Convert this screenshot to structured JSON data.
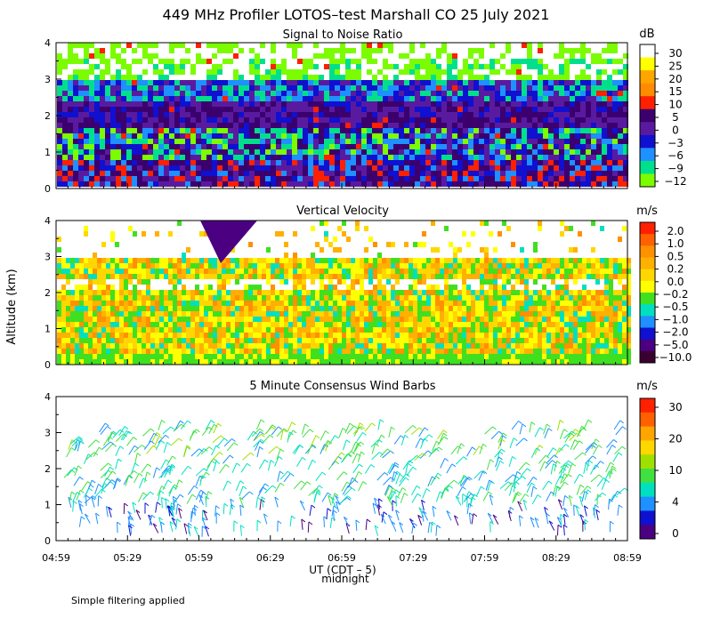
{
  "figure": {
    "title": "449 MHz Profiler LOTOS–test Marshall CO 25 July 2021",
    "ylabel": "Altitude (km)",
    "xlabel": "UT  (CDT – 5)",
    "xlabel_sub": "midnight",
    "footnote": "Simple filtering applied"
  },
  "chart_data": [
    {
      "type": "heatmap",
      "title": "Signal to Noise Ratio",
      "unit": "dB",
      "x_ticks": [],
      "y_ticks": [
        "0",
        "1",
        "2",
        "3",
        "4"
      ],
      "ylim": [
        0,
        4
      ],
      "colorbar_labels": [
        "30",
        "25",
        "20",
        "15",
        "10",
        "5",
        "0",
        "−3",
        "−6",
        "−9",
        "−12"
      ],
      "colors": [
        "#ffffff",
        "#ffff00",
        "#ffa500",
        "#ff8c00",
        "#ff2000",
        "#3b006e",
        "#5a1aa0",
        "#1010d0",
        "#1e90ff",
        "#00e08c",
        "#7cfc00"
      ]
    },
    {
      "type": "heatmap",
      "title": "Vertical Velocity",
      "unit": "m/s",
      "x_ticks": [],
      "y_ticks": [
        "0",
        "1",
        "2",
        "3",
        "4"
      ],
      "ylim": [
        0,
        4
      ],
      "colorbar_labels": [
        "2.0",
        "1.0",
        "0.5",
        "0.2",
        "0.0",
        "−0.2",
        "−0.5",
        "−1.0",
        "−2.0",
        "−5.0",
        "−10.0"
      ],
      "colors": [
        "#ff2000",
        "#ff6000",
        "#ff9000",
        "#ffb000",
        "#ffd700",
        "#ffff00",
        "#40e020",
        "#00e0c0",
        "#1e90ff",
        "#1010d0",
        "#4b0082",
        "#3a0030"
      ]
    },
    {
      "type": "scatter",
      "title": "5 Minute Consensus Wind Barbs",
      "unit": "m/s",
      "x_ticks": [
        "04:59",
        "05:29",
        "05:59",
        "06:29",
        "06:59",
        "07:29",
        "07:59",
        "08:29",
        "08:59"
      ],
      "y_ticks": [
        "0",
        "1",
        "2",
        "3",
        "4"
      ],
      "ylim": [
        0,
        4
      ],
      "colorbar_labels": [
        "30",
        "20",
        "10",
        "4",
        "0"
      ],
      "colors": [
        "#ff2000",
        "#ff6000",
        "#ffa500",
        "#ffd700",
        "#a0e000",
        "#40e040",
        "#00e0c0",
        "#1e90ff",
        "#1010d0",
        "#4b0082"
      ]
    }
  ]
}
